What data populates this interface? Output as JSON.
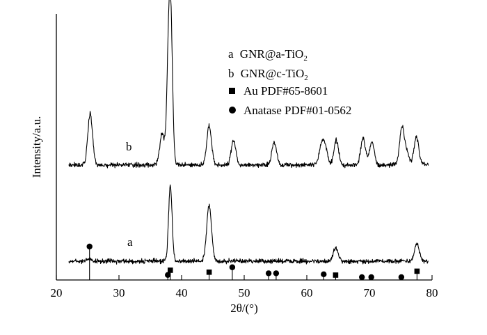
{
  "chart_data": {
    "type": "line",
    "xlabel": "2θ/(°)",
    "ylabel": "Intensity/a.u.",
    "xlim": [
      20,
      80
    ],
    "x_ticks": [
      20,
      30,
      40,
      50,
      60,
      70,
      80
    ],
    "grid": false,
    "legend_position": "top-right",
    "legend": [
      {
        "marker": "text",
        "key": "a",
        "text": "GNR@a-TiO",
        "sub": "2"
      },
      {
        "marker": "text",
        "key": "b",
        "text": "GNR@c-TiO",
        "sub": "2"
      },
      {
        "marker": "square",
        "text": "Au PDF#65-8601"
      },
      {
        "marker": "circle",
        "text": "Anatase PDF#01-0562"
      }
    ],
    "series": [
      {
        "name": "a",
        "baseline": 0.1,
        "peaks": [
          {
            "x": 25.3,
            "h": 0.03
          },
          {
            "x": 38.2,
            "h": 0.97
          },
          {
            "x": 44.4,
            "h": 0.72
          },
          {
            "x": 64.6,
            "h": 0.18
          },
          {
            "x": 77.6,
            "h": 0.22
          }
        ]
      },
      {
        "name": "b",
        "baseline": 0.1,
        "peaks": [
          {
            "x": 25.4,
            "h": 0.68
          },
          {
            "x": 36.9,
            "h": 0.42
          },
          {
            "x": 37.9,
            "h": 1.3
          },
          {
            "x": 38.3,
            "h": 1.7
          },
          {
            "x": 44.4,
            "h": 0.52
          },
          {
            "x": 48.3,
            "h": 0.32
          },
          {
            "x": 54.8,
            "h": 0.3
          },
          {
            "x": 62.3,
            "h": 0.23
          },
          {
            "x": 62.9,
            "h": 0.23
          },
          {
            "x": 64.7,
            "h": 0.33
          },
          {
            "x": 69.0,
            "h": 0.35
          },
          {
            "x": 70.4,
            "h": 0.3
          },
          {
            "x": 75.2,
            "h": 0.5
          },
          {
            "x": 76.0,
            "h": 0.15
          },
          {
            "x": 77.5,
            "h": 0.37
          }
        ]
      }
    ],
    "reference_au": [
      {
        "x": 38.2,
        "rel": 0.1
      },
      {
        "x": 44.4,
        "rel": 0.08
      },
      {
        "x": 64.6,
        "rel": 0.05
      },
      {
        "x": 77.6,
        "rel": 0.09
      }
    ],
    "reference_anatase": [
      {
        "x": 25.3,
        "rel": 1.0
      },
      {
        "x": 37.8,
        "rel": 0.15
      },
      {
        "x": 48.1,
        "rel": 0.38
      },
      {
        "x": 53.9,
        "rel": 0.2
      },
      {
        "x": 55.1,
        "rel": 0.2
      },
      {
        "x": 62.7,
        "rel": 0.17
      },
      {
        "x": 68.8,
        "rel": 0.05
      },
      {
        "x": 70.3,
        "rel": 0.05
      },
      {
        "x": 75.1,
        "rel": 0.08
      }
    ]
  }
}
